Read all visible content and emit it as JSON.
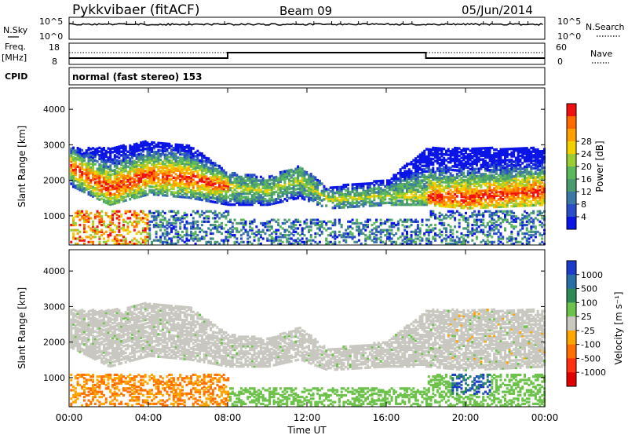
{
  "header": {
    "title": "Pykkvibaer (fitACF)",
    "beam": "Beam 09",
    "date": "05/Jun/2014"
  },
  "strips": {
    "nsky_label": "N.Sky",
    "nsky_ticks": [
      "10^5",
      "10^0"
    ],
    "nsearch_label": "N.Search",
    "nsearch_ticks": [
      "10^5",
      "10^0"
    ],
    "freq_label": "Freq.",
    "freq_unit": "[MHz]",
    "freq_ticks": [
      "18",
      "8"
    ],
    "nave_label": "Nave",
    "nave_ticks": [
      "60",
      "0"
    ],
    "cpid_label": "CPID",
    "cpid_text": "normal (fast stereo) 153"
  },
  "chart_data": [
    {
      "type": "heatmap",
      "name": "power",
      "ylabel": "Slant Range [km]",
      "ylim": [
        180,
        4600
      ],
      "yticks": [
        "1000",
        "2000",
        "3000",
        "4000"
      ],
      "colorbar_label": "Power [dB]",
      "colorbar": {
        "colors": [
          "#0a14e6",
          "#2a4ec8",
          "#3c78a6",
          "#4a9c6e",
          "#5cb85c",
          "#9acd32",
          "#f0d000",
          "#ffa000",
          "#ff6a00",
          "#f01010"
        ],
        "ticks": [
          "4",
          "8",
          "12",
          "16",
          "20",
          "24",
          "28"
        ]
      },
      "bands": [
        {
          "t": 0,
          "lo": 1850,
          "hi": 2900,
          "core": 2400
        },
        {
          "t": 2,
          "lo": 1300,
          "hi": 2900,
          "core": 1750
        },
        {
          "t": 4,
          "lo": 1600,
          "hi": 3100,
          "core": 2150
        },
        {
          "t": 6,
          "lo": 1500,
          "hi": 3000,
          "core": 2050
        },
        {
          "t": 8,
          "lo": 1300,
          "hi": 2200,
          "core": 1800
        },
        {
          "t": 10,
          "lo": 1300,
          "hi": 2100,
          "core": 1700
        },
        {
          "t": 11.6,
          "lo": 1500,
          "hi": 2400,
          "core": 2000
        },
        {
          "t": 13,
          "lo": 1200,
          "hi": 1800,
          "core": 1450
        },
        {
          "t": 16,
          "lo": 1300,
          "hi": 2000,
          "core": 1550
        },
        {
          "t": 18,
          "lo": 1300,
          "hi": 2900,
          "core": 1550
        },
        {
          "t": 20,
          "lo": 1200,
          "hi": 2900,
          "core": 1500
        },
        {
          "t": 24,
          "lo": 1300,
          "hi": 2900,
          "core": 1700
        }
      ]
    },
    {
      "type": "heatmap",
      "name": "velocity",
      "ylabel": "Slant Range [km]",
      "ylim": [
        180,
        4600
      ],
      "yticks": [
        "1000",
        "2000",
        "3000",
        "4000"
      ],
      "colorbar_label": "Velocity [m s⁻¹]",
      "colorbar": {
        "colors": [
          "#1a3cc8",
          "#2a6ea6",
          "#2e8b57",
          "#6cc24a",
          "#c8c8c0",
          "#ffa500",
          "#ff7000",
          "#ff3010",
          "#e00000"
        ],
        "ticks": [
          "1000",
          "500",
          "100",
          "25",
          "-25",
          "-100",
          "-500",
          "-1000"
        ]
      },
      "ground_scatter_color": "#c8c8c0"
    }
  ],
  "xaxis": {
    "label": "Time UT",
    "ticks": [
      "00:00",
      "04:00",
      "08:00",
      "12:00",
      "16:00",
      "20:00",
      "00:00"
    ],
    "range": [
      0,
      24
    ]
  }
}
